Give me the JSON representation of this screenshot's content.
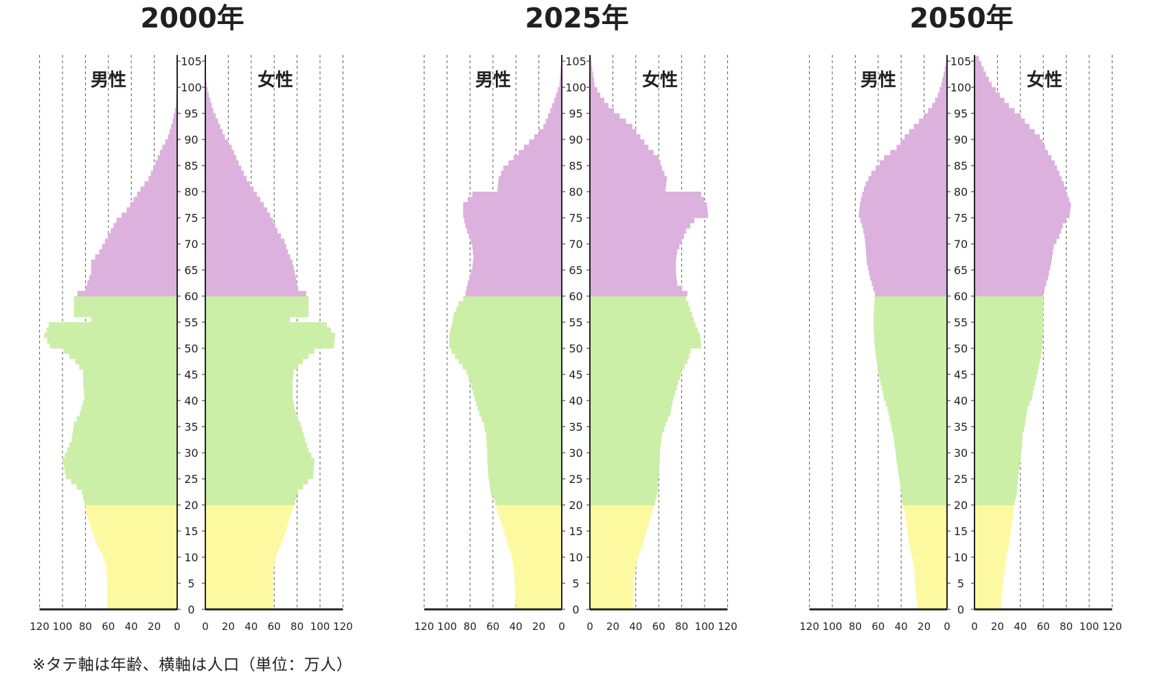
{
  "chart_data": [
    {
      "type": "bar",
      "orientation": "horizontal-population-pyramid",
      "title": "2000年",
      "left_label": "男性",
      "right_label": "女性",
      "ylabel": "年齢",
      "xlabel": "人口",
      "y_ticks": [
        0,
        5,
        10,
        15,
        20,
        25,
        30,
        35,
        40,
        45,
        50,
        55,
        60,
        65,
        70,
        75,
        80,
        85,
        90,
        95,
        100,
        105
      ],
      "x_ticks_left": [
        120,
        100,
        80,
        60,
        40,
        20,
        0
      ],
      "x_ticks_right": [
        0,
        20,
        40,
        60,
        80,
        100,
        120
      ],
      "xlim": [
        0,
        120
      ],
      "ylim": [
        0,
        107
      ],
      "grid": "vertical dashed",
      "color_bands": [
        {
          "from_age": 0,
          "to_age": 19,
          "color": "#fdf9a0"
        },
        {
          "from_age": 20,
          "to_age": 59,
          "color": "#cbefa6"
        },
        {
          "from_age": 60,
          "to_age": 105,
          "color": "#dcb1de"
        }
      ],
      "male_points": [
        [
          0,
          61
        ],
        [
          5,
          61
        ],
        [
          8,
          62
        ],
        [
          10,
          65
        ],
        [
          12,
          70
        ],
        [
          15,
          75
        ],
        [
          18,
          79
        ],
        [
          20,
          81
        ],
        [
          22,
          83
        ],
        [
          25,
          97
        ],
        [
          28,
          100
        ],
        [
          30,
          96
        ],
        [
          32,
          92
        ],
        [
          35,
          90
        ],
        [
          37,
          85
        ],
        [
          40,
          81
        ],
        [
          43,
          82
        ],
        [
          45,
          82
        ],
        [
          47,
          89
        ],
        [
          49,
          99
        ],
        [
          50,
          111
        ],
        [
          52,
          116
        ],
        [
          54,
          112
        ],
        [
          55,
          75
        ],
        [
          56,
          90
        ],
        [
          59,
          90
        ],
        [
          60,
          87
        ],
        [
          61,
          80
        ],
        [
          64,
          75
        ],
        [
          66,
          75
        ],
        [
          68,
          68
        ],
        [
          70,
          63
        ],
        [
          72,
          58
        ],
        [
          74,
          53
        ],
        [
          76,
          44
        ],
        [
          78,
          38
        ],
        [
          80,
          32
        ],
        [
          82,
          25
        ],
        [
          85,
          19
        ],
        [
          88,
          13
        ],
        [
          90,
          8
        ],
        [
          93,
          4
        ],
        [
          96,
          1
        ],
        [
          100,
          0.4
        ],
        [
          105,
          0
        ]
      ],
      "female_points": [
        [
          0,
          59
        ],
        [
          5,
          59
        ],
        [
          8,
          60
        ],
        [
          10,
          62
        ],
        [
          12,
          66
        ],
        [
          15,
          71
        ],
        [
          18,
          75
        ],
        [
          20,
          78
        ],
        [
          22,
          81
        ],
        [
          25,
          94
        ],
        [
          28,
          95
        ],
        [
          30,
          90
        ],
        [
          32,
          87
        ],
        [
          35,
          83
        ],
        [
          37,
          79
        ],
        [
          40,
          76
        ],
        [
          43,
          76
        ],
        [
          45,
          77
        ],
        [
          47,
          85
        ],
        [
          49,
          95
        ],
        [
          50,
          112
        ],
        [
          52,
          113
        ],
        [
          54,
          106
        ],
        [
          55,
          74
        ],
        [
          56,
          90
        ],
        [
          59,
          90
        ],
        [
          60,
          88
        ],
        [
          61,
          81
        ],
        [
          63,
          79
        ],
        [
          66,
          76
        ],
        [
          68,
          72
        ],
        [
          70,
          69
        ],
        [
          72,
          63
        ],
        [
          74,
          59
        ],
        [
          76,
          54
        ],
        [
          78,
          48
        ],
        [
          80,
          42
        ],
        [
          82,
          36
        ],
        [
          85,
          29
        ],
        [
          88,
          23
        ],
        [
          90,
          17
        ],
        [
          93,
          11
        ],
        [
          95,
          7
        ],
        [
          98,
          3
        ],
        [
          100,
          1
        ],
        [
          103,
          0
        ]
      ]
    },
    {
      "type": "bar",
      "orientation": "horizontal-population-pyramid",
      "title": "2025年",
      "left_label": "男性",
      "right_label": "女性",
      "ylabel": "年齢",
      "xlabel": "人口",
      "y_ticks": [
        0,
        5,
        10,
        15,
        20,
        25,
        30,
        35,
        40,
        45,
        50,
        55,
        60,
        65,
        70,
        75,
        80,
        85,
        90,
        95,
        100,
        105
      ],
      "x_ticks_left": [
        120,
        100,
        80,
        60,
        40,
        20,
        0
      ],
      "x_ticks_right": [
        0,
        20,
        40,
        60,
        80,
        100,
        120
      ],
      "xlim": [
        0,
        120
      ],
      "ylim": [
        0,
        107
      ],
      "grid": "vertical dashed",
      "color_bands": [
        {
          "from_age": 0,
          "to_age": 19,
          "color": "#fdf9a0"
        },
        {
          "from_age": 20,
          "to_age": 59,
          "color": "#cbefa6"
        },
        {
          "from_age": 60,
          "to_age": 105,
          "color": "#dcb1de"
        }
      ],
      "male_points": [
        [
          0,
          40
        ],
        [
          5,
          41
        ],
        [
          8,
          42
        ],
        [
          10,
          44
        ],
        [
          12,
          47
        ],
        [
          15,
          51
        ],
        [
          18,
          56
        ],
        [
          20,
          58
        ],
        [
          22,
          62
        ],
        [
          25,
          64
        ],
        [
          28,
          65
        ],
        [
          30,
          65
        ],
        [
          33,
          66
        ],
        [
          35,
          68
        ],
        [
          37,
          72
        ],
        [
          40,
          76
        ],
        [
          43,
          80
        ],
        [
          45,
          83
        ],
        [
          47,
          90
        ],
        [
          49,
          96
        ],
        [
          50,
          98
        ],
        [
          52,
          98
        ],
        [
          54,
          96
        ],
        [
          56,
          94
        ],
        [
          58,
          90
        ],
        [
          59,
          86
        ],
        [
          60,
          84
        ],
        [
          62,
          82
        ],
        [
          65,
          78
        ],
        [
          67,
          77
        ],
        [
          69,
          78
        ],
        [
          71,
          81
        ],
        [
          73,
          84
        ],
        [
          75,
          86
        ],
        [
          77,
          86
        ],
        [
          79,
          78
        ],
        [
          80,
          56
        ],
        [
          82,
          55
        ],
        [
          84,
          51
        ],
        [
          86,
          42
        ],
        [
          88,
          33
        ],
        [
          90,
          24
        ],
        [
          92,
          16
        ],
        [
          95,
          10
        ],
        [
          98,
          5
        ],
        [
          100,
          2
        ],
        [
          103,
          1
        ],
        [
          105,
          0
        ]
      ],
      "female_points": [
        [
          0,
          38
        ],
        [
          5,
          38
        ],
        [
          8,
          40
        ],
        [
          10,
          43
        ],
        [
          12,
          46
        ],
        [
          15,
          50
        ],
        [
          18,
          54
        ],
        [
          20,
          57
        ],
        [
          22,
          59
        ],
        [
          25,
          60
        ],
        [
          28,
          61
        ],
        [
          30,
          61
        ],
        [
          33,
          63
        ],
        [
          35,
          66
        ],
        [
          37,
          70
        ],
        [
          40,
          73
        ],
        [
          43,
          77
        ],
        [
          45,
          80
        ],
        [
          47,
          85
        ],
        [
          49,
          88
        ],
        [
          50,
          97
        ],
        [
          52,
          96
        ],
        [
          54,
          92
        ],
        [
          56,
          89
        ],
        [
          58,
          86
        ],
        [
          59,
          84
        ],
        [
          60,
          85
        ],
        [
          62,
          76
        ],
        [
          64,
          75
        ],
        [
          66,
          75
        ],
        [
          68,
          76
        ],
        [
          70,
          80
        ],
        [
          72,
          84
        ],
        [
          74,
          91
        ],
        [
          75,
          103
        ],
        [
          77,
          102
        ],
        [
          79,
          97
        ],
        [
          80,
          66
        ],
        [
          82,
          67
        ],
        [
          84,
          63
        ],
        [
          86,
          60
        ],
        [
          88,
          51
        ],
        [
          90,
          44
        ],
        [
          92,
          37
        ],
        [
          94,
          26
        ],
        [
          96,
          16
        ],
        [
          98,
          9
        ],
        [
          100,
          4
        ],
        [
          103,
          2
        ],
        [
          105,
          1
        ]
      ]
    },
    {
      "type": "bar",
      "orientation": "horizontal-population-pyramid",
      "title": "2050年",
      "left_label": "男性",
      "right_label": "女性",
      "ylabel": "年齢",
      "xlabel": "人口",
      "y_ticks": [
        0,
        5,
        10,
        15,
        20,
        25,
        30,
        35,
        40,
        45,
        50,
        55,
        60,
        65,
        70,
        75,
        80,
        85,
        90,
        95,
        100,
        105
      ],
      "x_ticks_left": [
        120,
        100,
        80,
        60,
        40,
        20,
        0
      ],
      "x_ticks_right": [
        0,
        20,
        40,
        60,
        80,
        100,
        120
      ],
      "xlim": [
        0,
        120
      ],
      "ylim": [
        0,
        107
      ],
      "grid": "vertical dashed",
      "color_bands": [
        {
          "from_age": 0,
          "to_age": 19,
          "color": "#fdf9a0"
        },
        {
          "from_age": 20,
          "to_age": 59,
          "color": "#cbefa6"
        },
        {
          "from_age": 60,
          "to_age": 105,
          "color": "#dcb1de"
        }
      ],
      "male_points": [
        [
          0,
          26
        ],
        [
          5,
          28
        ],
        [
          8,
          29
        ],
        [
          10,
          31
        ],
        [
          12,
          33
        ],
        [
          15,
          35
        ],
        [
          18,
          37
        ],
        [
          20,
          39
        ],
        [
          22,
          40
        ],
        [
          25,
          42
        ],
        [
          28,
          44
        ],
        [
          30,
          45
        ],
        [
          33,
          47
        ],
        [
          35,
          49
        ],
        [
          38,
          52
        ],
        [
          40,
          55
        ],
        [
          43,
          58
        ],
        [
          45,
          60
        ],
        [
          48,
          62
        ],
        [
          50,
          63
        ],
        [
          53,
          64
        ],
        [
          56,
          64
        ],
        [
          59,
          63
        ],
        [
          60,
          63
        ],
        [
          63,
          67
        ],
        [
          66,
          70
        ],
        [
          69,
          71
        ],
        [
          71,
          72
        ],
        [
          73,
          74
        ],
        [
          75,
          77
        ],
        [
          77,
          76
        ],
        [
          79,
          74
        ],
        [
          81,
          71
        ],
        [
          83,
          66
        ],
        [
          86,
          55
        ],
        [
          88,
          44
        ],
        [
          90,
          37
        ],
        [
          92,
          29
        ],
        [
          94,
          20
        ],
        [
          96,
          13
        ],
        [
          98,
          8
        ],
        [
          100,
          5
        ],
        [
          102,
          3
        ],
        [
          104,
          1
        ],
        [
          105,
          0
        ]
      ],
      "female_points": [
        [
          0,
          23
        ],
        [
          5,
          25
        ],
        [
          8,
          27
        ],
        [
          10,
          28
        ],
        [
          12,
          30
        ],
        [
          15,
          32
        ],
        [
          18,
          34
        ],
        [
          20,
          35
        ],
        [
          22,
          37
        ],
        [
          25,
          38
        ],
        [
          28,
          40
        ],
        [
          30,
          41
        ],
        [
          33,
          42
        ],
        [
          35,
          44
        ],
        [
          38,
          46
        ],
        [
          40,
          50
        ],
        [
          43,
          53
        ],
        [
          45,
          55
        ],
        [
          48,
          58
        ],
        [
          50,
          59
        ],
        [
          53,
          60
        ],
        [
          56,
          60
        ],
        [
          59,
          60
        ],
        [
          60,
          60
        ],
        [
          63,
          64
        ],
        [
          66,
          67
        ],
        [
          69,
          69
        ],
        [
          71,
          74
        ],
        [
          73,
          77
        ],
        [
          75,
          83
        ],
        [
          77,
          84
        ],
        [
          79,
          81
        ],
        [
          81,
          78
        ],
        [
          83,
          74
        ],
        [
          85,
          70
        ],
        [
          87,
          64
        ],
        [
          90,
          57
        ],
        [
          92,
          48
        ],
        [
          94,
          40
        ],
        [
          96,
          30
        ],
        [
          98,
          22
        ],
        [
          100,
          15
        ],
        [
          102,
          10
        ],
        [
          104,
          6
        ],
        [
          105,
          4
        ]
      ]
    }
  ],
  "footnote": "※タテ軸は年齢、横軸は人口（単位：万人）"
}
